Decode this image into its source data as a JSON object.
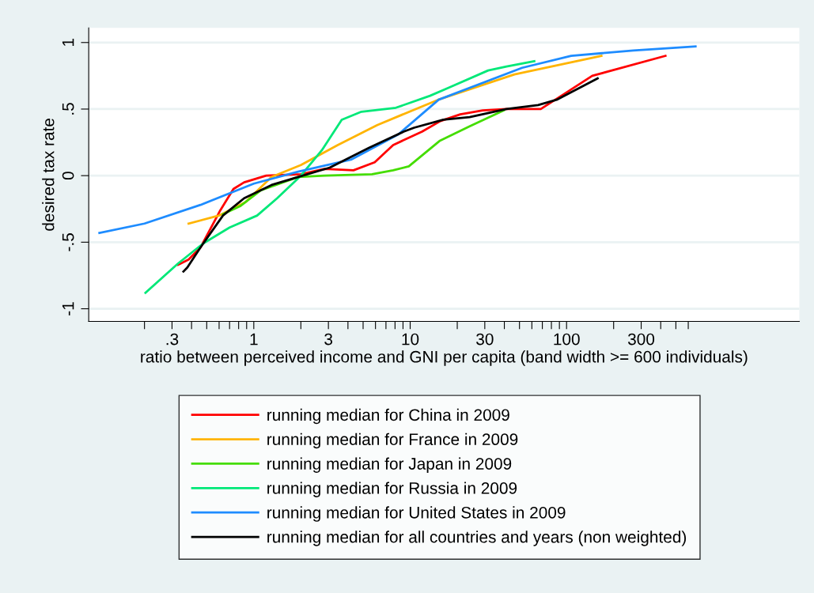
{
  "chart_data": {
    "type": "line",
    "xlabel": "ratio between perceived income and GNI per capita (band width >= 600 individuals)",
    "ylabel": "desired tax rate",
    "log": "x",
    "grid": "y",
    "legend": "bottom",
    "marker": "none",
    "line_style": "solid",
    "xlim": [
      0.088,
      3080
    ],
    "ylim": [
      -1.095,
      1.11
    ],
    "xticks": [
      {
        "value": 0.2,
        "label": null
      },
      {
        "value": 0.3,
        "label": ".3"
      },
      {
        "value": 0.4,
        "label": null
      },
      {
        "value": 0.5,
        "label": null
      },
      {
        "value": 0.6,
        "label": null
      },
      {
        "value": 0.7,
        "label": null
      },
      {
        "value": 0.8,
        "label": null
      },
      {
        "value": 0.9,
        "label": null
      },
      1,
      {
        "value": 2,
        "label": null
      },
      3,
      {
        "value": 4,
        "label": null
      },
      {
        "value": 5,
        "label": null
      },
      {
        "value": 6,
        "label": null
      },
      {
        "value": 7,
        "label": null
      },
      {
        "value": 8,
        "label": null
      },
      {
        "value": 9,
        "label": null
      },
      10,
      {
        "value": 20,
        "label": null
      },
      30,
      {
        "value": 40,
        "label": null
      },
      {
        "value": 50,
        "label": null
      },
      {
        "value": 60,
        "label": null
      },
      {
        "value": 70,
        "label": null
      },
      {
        "value": 80,
        "label": null
      },
      {
        "value": 90,
        "label": null
      },
      100,
      {
        "value": 200,
        "label": null
      },
      300,
      {
        "value": 400,
        "label": null
      },
      {
        "value": 500,
        "label": null
      },
      {
        "value": 600,
        "label": null
      }
    ],
    "yticks": [
      {
        "value": -1,
        "label": "-1"
      },
      {
        "value": -0.5,
        "label": "-.5"
      },
      0,
      {
        "value": 0.5,
        "label": ".5"
      },
      1
    ],
    "series": [
      {
        "name": "running median for China in 2009",
        "color": "#ff0000",
        "x": [
          0.328,
          0.383,
          0.456,
          0.611,
          0.741,
          0.867,
          1.2,
          2.0,
          2.83,
          4.34,
          5.93,
          7.78,
          11.9,
          15.6,
          20.9,
          29.1,
          41.3,
          68.4,
          89.8,
          146,
          429
        ],
        "values": [
          -0.67,
          -0.63,
          -0.54,
          -0.26,
          -0.1,
          -0.05,
          0.0,
          0.01,
          0.05,
          0.04,
          0.1,
          0.23,
          0.33,
          0.41,
          0.46,
          0.49,
          0.5,
          0.5,
          0.59,
          0.75,
          0.9
        ]
      },
      {
        "name": "running median for France in 2009",
        "color": "#ffb400",
        "x": [
          0.383,
          0.598,
          0.883,
          1.3,
          2.0,
          3.44,
          6.15,
          15.1,
          46.4,
          167
        ],
        "values": [
          -0.36,
          -0.3,
          -0.2,
          -0.01,
          0.08,
          0.23,
          0.38,
          0.57,
          0.76,
          0.9
        ]
      },
      {
        "name": "running median for Japan in 2009",
        "color": "#44dd00",
        "x": [
          0.635,
          0.817,
          1.11,
          1.92,
          2.83,
          5.7,
          7.78,
          9.8,
          15.4,
          24,
          39.7
        ],
        "values": [
          -0.29,
          -0.23,
          -0.11,
          -0.01,
          0.0,
          0.01,
          0.04,
          0.07,
          0.26,
          0.37,
          0.49
        ]
      },
      {
        "name": "running median for Russia in 2009",
        "color": "#00e878",
        "x": [
          0.203,
          0.328,
          0.474,
          0.7,
          1.05,
          1.41,
          2.0,
          2.72,
          3.65,
          4.88,
          8.1,
          13.4,
          17.6,
          31.5,
          41.3,
          62.2
        ],
        "values": [
          -0.88,
          -0.66,
          -0.51,
          -0.39,
          -0.3,
          -0.17,
          0.0,
          0.19,
          0.42,
          0.48,
          0.51,
          0.6,
          0.66,
          0.79,
          0.82,
          0.86
        ]
      },
      {
        "name": "running median for United States in 2009",
        "color": "#1e8cff",
        "x": [
          0.103,
          0.2,
          0.456,
          1.0,
          1.92,
          4.18,
          8.4,
          15.2,
          52,
          107,
          267,
          668
        ],
        "values": [
          -0.43,
          -0.36,
          -0.22,
          -0.06,
          0.03,
          0.12,
          0.31,
          0.57,
          0.81,
          0.9,
          0.94,
          0.97
        ]
      },
      {
        "name": "running median for all countries and years (non weighted)",
        "color": "#000000",
        "x": [
          0.355,
          0.376,
          0.456,
          0.635,
          0.867,
          1.3,
          1.92,
          3.06,
          5.48,
          9.08,
          10.6,
          16.3,
          24,
          41.3,
          65.8,
          86.4,
          158
        ],
        "values": [
          -0.72,
          -0.69,
          -0.54,
          -0.3,
          -0.17,
          -0.07,
          -0.01,
          0.06,
          0.21,
          0.33,
          0.36,
          0.42,
          0.44,
          0.5,
          0.53,
          0.57,
          0.73
        ]
      }
    ]
  }
}
